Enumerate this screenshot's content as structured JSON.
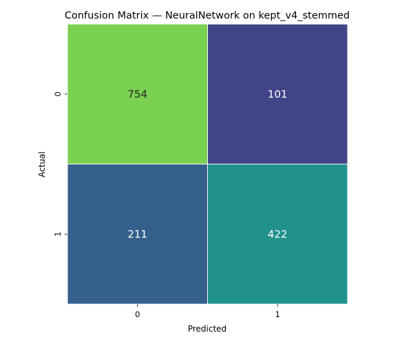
{
  "chart_data": {
    "type": "heatmap",
    "title": "Confusion Matrix — NeuralNetwork on kept_v4_stemmed",
    "xlabel": "Predicted",
    "ylabel": "Actual",
    "x_categories": [
      "0",
      "1"
    ],
    "y_categories": [
      "0",
      "1"
    ],
    "values": [
      [
        754,
        101
      ],
      [
        211,
        422
      ]
    ],
    "colormap": "viridis",
    "cell_colors": [
      [
        "#7ad151",
        "#414487"
      ],
      [
        "#355f8d",
        "#21918c"
      ]
    ],
    "cell_text_colors": [
      [
        "#262626",
        "#ffffff"
      ],
      [
        "#ffffff",
        "#ffffff"
      ]
    ],
    "colorbar": false,
    "grid": false
  }
}
